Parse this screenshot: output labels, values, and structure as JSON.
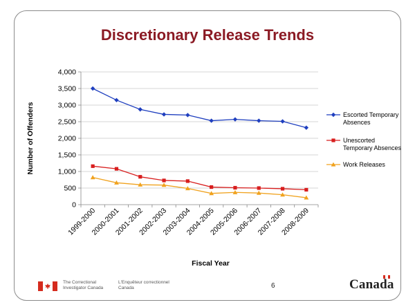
{
  "slide": {
    "title": "Discretionary Release Trends",
    "page_number": "6",
    "org_en": "The Correctional Investigator Canada",
    "org_fr": "L'Enquêteur correctionnel Canada",
    "wordmark": "Canada",
    "brand_red": "#d52b1e",
    "title_color": "#8b1a24"
  },
  "chart_data": {
    "type": "line",
    "ylabel": "Number of Offenders",
    "xlabel": "Fiscal Year",
    "ylim": [
      0,
      4000
    ],
    "yticks": [
      0,
      500,
      1000,
      1500,
      2000,
      2500,
      3000,
      3500,
      4000
    ],
    "ytick_labels": [
      "0",
      "500",
      "1,000",
      "1,500",
      "2,000",
      "2,500",
      "3,000",
      "3,500",
      "4,000"
    ],
    "grid": true,
    "legend_position": "right",
    "categories": [
      "1999-2000",
      "2000-2001",
      "2001-2002",
      "2002-2003",
      "2003-2004",
      "2004-2005",
      "2005-2006",
      "2006-2007",
      "2007-2008",
      "2008-2009"
    ],
    "series": [
      {
        "name": "Escorted Temporary Absences",
        "legend_lines": [
          "Escorted Temporary",
          "Absences"
        ],
        "color": "#1f3fbf",
        "marker": "diamond",
        "values": [
          3500,
          3150,
          2870,
          2720,
          2700,
          2530,
          2570,
          2530,
          2510,
          2320
        ]
      },
      {
        "name": "Unescorted Temporary Absences",
        "legend_lines": [
          "Unescorted",
          "Temporary Absences"
        ],
        "color": "#d81e1e",
        "marker": "square",
        "values": [
          1160,
          1080,
          840,
          730,
          710,
          530,
          510,
          500,
          480,
          450
        ]
      },
      {
        "name": "Work Releases",
        "legend_lines": [
          "Work Releases"
        ],
        "color": "#f0a21e",
        "marker": "triangle",
        "values": [
          820,
          660,
          600,
          590,
          490,
          340,
          370,
          350,
          300,
          210
        ]
      }
    ]
  }
}
